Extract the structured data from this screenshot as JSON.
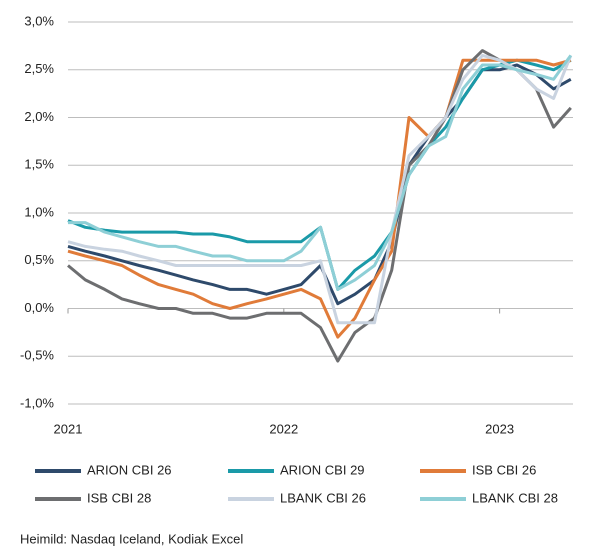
{
  "chart_data": {
    "type": "line",
    "source": "Heimild:  Nasdaq Iceland, Kodiak Excel",
    "x": [
      2021,
      2021.08,
      2021.17,
      2021.25,
      2021.33,
      2021.42,
      2021.5,
      2021.58,
      2021.67,
      2021.75,
      2021.83,
      2021.92,
      2022,
      2022.08,
      2022.17,
      2022.25,
      2022.33,
      2022.42,
      2022.5,
      2022.58,
      2022.67,
      2022.75,
      2022.83,
      2022.92,
      2023,
      2023.08,
      2023.17,
      2023.25,
      2023.33
    ],
    "series": [
      {
        "name": "ARION CBI 26",
        "color": "#2e4a6b",
        "values": [
          0.65,
          0.6,
          0.55,
          0.5,
          0.45,
          0.4,
          0.35,
          0.3,
          0.25,
          0.2,
          0.2,
          0.15,
          0.2,
          0.25,
          0.45,
          0.05,
          0.15,
          0.3,
          0.7,
          1.5,
          1.8,
          2.0,
          2.2,
          2.5,
          2.5,
          2.55,
          2.45,
          2.3,
          2.4
        ]
      },
      {
        "name": "ARION CBI 29",
        "color": "#1a9aa8",
        "values": [
          0.92,
          0.85,
          0.82,
          0.8,
          0.8,
          0.8,
          0.8,
          0.78,
          0.78,
          0.75,
          0.7,
          0.7,
          0.7,
          0.7,
          0.85,
          0.2,
          0.4,
          0.55,
          0.8,
          1.4,
          1.7,
          1.9,
          2.2,
          2.5,
          2.55,
          2.6,
          2.55,
          2.5,
          2.6
        ]
      },
      {
        "name": "ISB CBI 26",
        "color": "#e07b39",
        "values": [
          0.6,
          0.55,
          0.5,
          0.45,
          0.35,
          0.25,
          0.2,
          0.15,
          0.05,
          0.0,
          0.05,
          0.1,
          0.15,
          0.2,
          0.1,
          -0.3,
          -0.1,
          0.3,
          0.6,
          2.0,
          1.8,
          2.0,
          2.6,
          2.6,
          2.6,
          2.6,
          2.6,
          2.55,
          2.6
        ]
      },
      {
        "name": "ISB CBI 28",
        "color": "#6d6e70",
        "values": [
          0.45,
          0.3,
          0.2,
          0.1,
          0.05,
          0.0,
          0.0,
          -0.05,
          -0.05,
          -0.1,
          -0.1,
          -0.05,
          -0.05,
          -0.05,
          -0.2,
          -0.55,
          -0.25,
          -0.1,
          0.4,
          1.5,
          1.7,
          2.0,
          2.5,
          2.7,
          2.6,
          2.5,
          2.3,
          1.9,
          2.1
        ]
      },
      {
        "name": "LBANK CBI 26",
        "color": "#c9d3e0",
        "values": [
          0.7,
          0.65,
          0.62,
          0.6,
          0.55,
          0.5,
          0.45,
          0.45,
          0.45,
          0.45,
          0.45,
          0.45,
          0.45,
          0.45,
          0.5,
          -0.15,
          -0.15,
          -0.15,
          0.8,
          1.6,
          1.8,
          2.0,
          2.4,
          2.65,
          2.6,
          2.5,
          2.3,
          2.2,
          2.65
        ]
      },
      {
        "name": "LBANK CBI 28",
        "color": "#8ecfd6",
        "values": [
          0.9,
          0.9,
          0.8,
          0.75,
          0.7,
          0.65,
          0.65,
          0.6,
          0.55,
          0.55,
          0.5,
          0.5,
          0.5,
          0.6,
          0.85,
          0.2,
          0.3,
          0.45,
          0.8,
          1.4,
          1.7,
          1.8,
          2.3,
          2.55,
          2.55,
          2.5,
          2.45,
          2.4,
          2.65
        ]
      }
    ],
    "xlim": [
      2021,
      2023.34
    ],
    "xticks": [
      2021,
      2022,
      2023
    ],
    "ylim": [
      -1,
      3
    ],
    "yticks": [
      {
        "value": -1,
        "label": "-1,0%"
      },
      {
        "value": -0.5,
        "label": "-0,5%"
      },
      {
        "value": 0,
        "label": "0,0%"
      },
      {
        "value": 0.5,
        "label": "0,5%"
      },
      {
        "value": 1,
        "label": "1,0%"
      },
      {
        "value": 1.5,
        "label": "1,5%"
      },
      {
        "value": 2,
        "label": "2,0%"
      },
      {
        "value": 2.5,
        "label": "2,5%"
      },
      {
        "value": 3,
        "label": "3,0%"
      }
    ],
    "grid": true,
    "legend": "bottom"
  }
}
